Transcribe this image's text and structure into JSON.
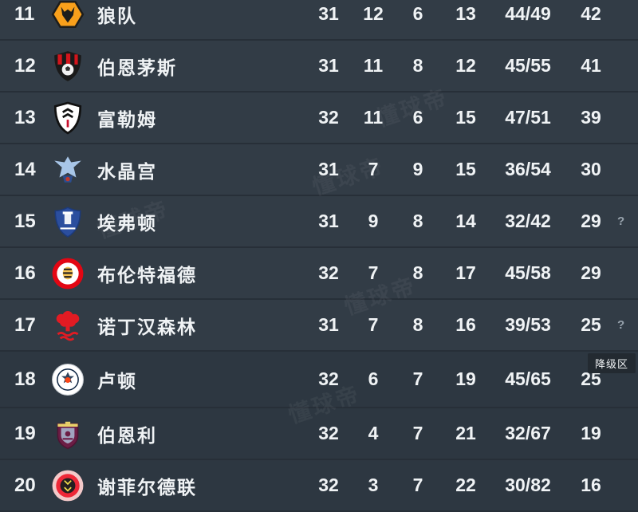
{
  "app": {
    "watermark": "懂球帝"
  },
  "badges": {
    "relegation": "降级区"
  },
  "colors": {
    "row_bg": "#323c46",
    "relegation_row_bg": "#2d3741",
    "divider": "#272f38",
    "text": "#f0f3f5",
    "badge_bg": "#232a31",
    "hint": "#98a3ad",
    "wolves_gold": "#f9a01b",
    "red": "#e21b23",
    "everton_blue": "#2b4e9e",
    "burnley_claret": "#6c1d45"
  },
  "table": {
    "rows": [
      {
        "rank": "11",
        "team": "狼队",
        "crest": "wolves",
        "played": "31",
        "won": "12",
        "drawn": "6",
        "lost": "13",
        "goals": "44/49",
        "points": "42",
        "flag": ""
      },
      {
        "rank": "12",
        "team": "伯恩茅斯",
        "crest": "bournemouth",
        "played": "31",
        "won": "11",
        "drawn": "8",
        "lost": "12",
        "goals": "45/55",
        "points": "41",
        "flag": ""
      },
      {
        "rank": "13",
        "team": "富勒姆",
        "crest": "fulham",
        "played": "32",
        "won": "11",
        "drawn": "6",
        "lost": "15",
        "goals": "47/51",
        "points": "39",
        "flag": ""
      },
      {
        "rank": "14",
        "team": "水晶宫",
        "crest": "crystal-palace",
        "played": "31",
        "won": "7",
        "drawn": "9",
        "lost": "15",
        "goals": "36/54",
        "points": "30",
        "flag": ""
      },
      {
        "rank": "15",
        "team": "埃弗顿",
        "crest": "everton",
        "played": "31",
        "won": "9",
        "drawn": "8",
        "lost": "14",
        "goals": "32/42",
        "points": "29",
        "flag": "?"
      },
      {
        "rank": "16",
        "team": "布伦特福德",
        "crest": "brentford",
        "played": "32",
        "won": "7",
        "drawn": "8",
        "lost": "17",
        "goals": "45/58",
        "points": "29",
        "flag": ""
      },
      {
        "rank": "17",
        "team": "诺丁汉森林",
        "crest": "nottingham-forest",
        "played": "31",
        "won": "7",
        "drawn": "8",
        "lost": "16",
        "goals": "39/53",
        "points": "25",
        "flag": "?"
      },
      {
        "rank": "18",
        "team": "卢顿",
        "crest": "luton",
        "played": "32",
        "won": "6",
        "drawn": "7",
        "lost": "19",
        "goals": "45/65",
        "points": "25",
        "flag": "",
        "section_badge": "降级区"
      },
      {
        "rank": "19",
        "team": "伯恩利",
        "crest": "burnley",
        "played": "32",
        "won": "4",
        "drawn": "7",
        "lost": "21",
        "goals": "32/67",
        "points": "19",
        "flag": ""
      },
      {
        "rank": "20",
        "team": "谢菲尔德联",
        "crest": "sheffield-united",
        "played": "32",
        "won": "3",
        "drawn": "7",
        "lost": "22",
        "goals": "30/82",
        "points": "16",
        "flag": ""
      }
    ]
  }
}
